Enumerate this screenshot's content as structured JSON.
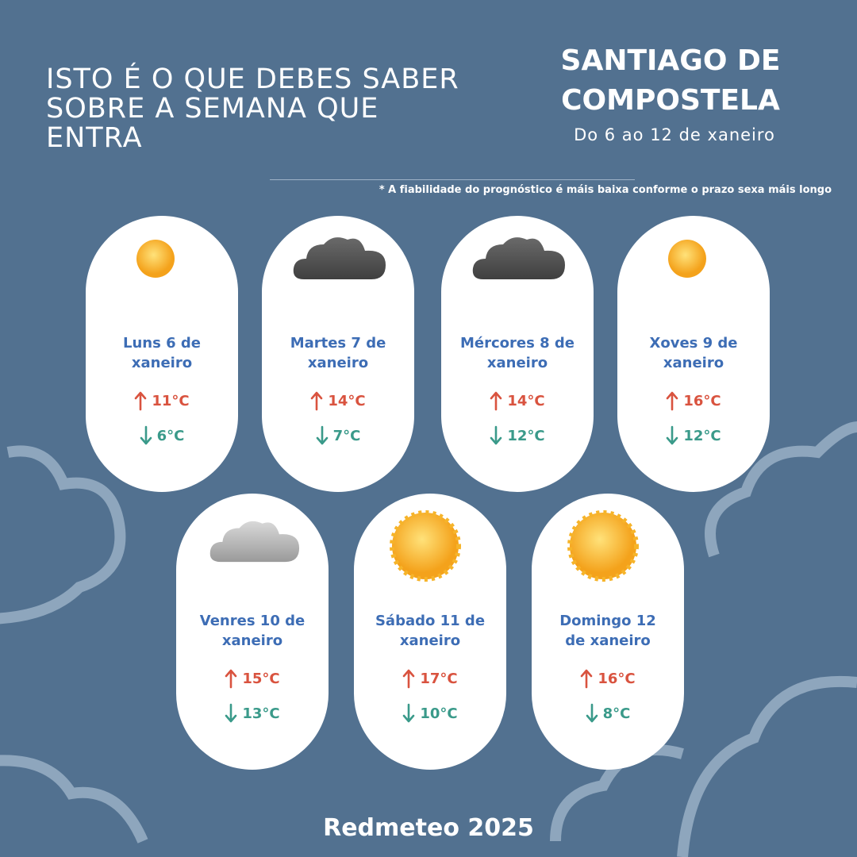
{
  "header": {
    "title_lines": [
      "ISTO É O QUE DEBES SABER",
      "SOBRE A SEMANA QUE",
      "ENTRA"
    ],
    "city_lines": [
      "SANTIAGO DE",
      "COMPOSTELA"
    ],
    "dates": "Do 6 ao 12 de xaneiro",
    "note": "* A fiabilidade do prognóstico é máis baixa conforme o prazo sexa máis longo"
  },
  "days": [
    {
      "name": "Luns 6 de xaneiro",
      "max": "11°C",
      "min": "6°C"
    },
    {
      "name": "Martes 7 de xaneiro",
      "max": "14°C",
      "min": "7°C"
    },
    {
      "name": "Mércores 8 de xaneiro",
      "max": "14°C",
      "min": "12°C"
    },
    {
      "name": "Xoves 9 de xaneiro",
      "max": "16°C",
      "min": "12°C"
    },
    {
      "name": "Venres 10 de xaneiro",
      "max": "15°C",
      "min": "13°C"
    },
    {
      "name": "Sábado 11 de xaneiro",
      "max": "17°C",
      "min": "10°C"
    },
    {
      "name": "Domingo 12 de xaneiro",
      "max": "16°C",
      "min": "8°C"
    }
  ],
  "footer": "Redmeteo 2025"
}
